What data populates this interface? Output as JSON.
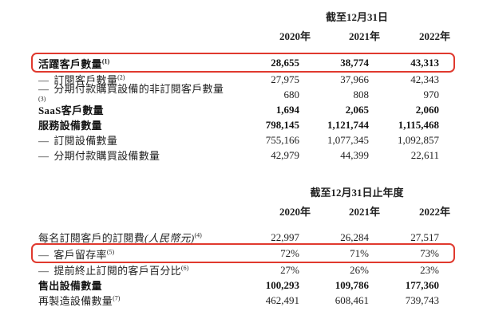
{
  "page": {
    "background": "#ffffff",
    "text_color": "#1f1f1f",
    "highlight_color": "#e0392e"
  },
  "tables": [
    {
      "period_header": "截至12月31日",
      "years": [
        "2020年",
        "2021年",
        "2022年"
      ],
      "rows": [
        {
          "dash": "",
          "label": "活躍客戶數量",
          "italic": "",
          "sup": "(1)",
          "values": [
            "28,655",
            "38,774",
            "43,313"
          ],
          "bold": true,
          "highlight": true
        },
        {
          "dash": "—",
          "label": "訂閱客戶數量",
          "italic": "",
          "sup": "(2)",
          "values": [
            "27,975",
            "37,966",
            "42,343"
          ],
          "bold": false,
          "highlight": false
        },
        {
          "dash": "—",
          "label": "分期付款購買設備的非訂閱客戶數量",
          "italic": "",
          "sup": "(3)",
          "values": [
            "680",
            "808",
            "970"
          ],
          "bold": false,
          "highlight": false
        },
        {
          "dash": "",
          "label": "SaaS客戶數量",
          "italic": "",
          "sup": "",
          "values": [
            "1,694",
            "2,065",
            "2,060"
          ],
          "bold": true,
          "highlight": false
        },
        {
          "dash": "",
          "label": "服務設備數量",
          "italic": "",
          "sup": "",
          "values": [
            "798,145",
            "1,121,744",
            "1,115,468"
          ],
          "bold": true,
          "highlight": false
        },
        {
          "dash": "—",
          "label": "訂閱設備數量",
          "italic": "",
          "sup": "",
          "values": [
            "755,166",
            "1,077,345",
            "1,092,857"
          ],
          "bold": false,
          "highlight": false
        },
        {
          "dash": "—",
          "label": "分期付款購買設備數量",
          "italic": "",
          "sup": "",
          "values": [
            "42,979",
            "44,399",
            "22,611"
          ],
          "bold": false,
          "highlight": false
        }
      ]
    },
    {
      "period_header": "截至12月31日止年度",
      "years": [
        "2020年",
        "2021年",
        "2022年"
      ],
      "rows": [
        {
          "dash": "",
          "label": "每名訂閱客戶的訂閱費",
          "italic": "(人民幣元)",
          "sup": "(4)",
          "values": [
            "22,997",
            "26,284",
            "27,517"
          ],
          "bold": false,
          "highlight": false
        },
        {
          "dash": "—",
          "label": "客戶留存率",
          "italic": "",
          "sup": "(5)",
          "values": [
            "72%",
            "71%",
            "73%"
          ],
          "bold": false,
          "highlight": true
        },
        {
          "dash": "—",
          "label": "提前終止訂閱的客戶百分比",
          "italic": "",
          "sup": "(6)",
          "values": [
            "27%",
            "26%",
            "23%"
          ],
          "bold": false,
          "highlight": false
        },
        {
          "dash": "",
          "label": "售出設備數量",
          "italic": "",
          "sup": "",
          "values": [
            "100,293",
            "109,786",
            "177,360"
          ],
          "bold": true,
          "highlight": false
        },
        {
          "dash": "",
          "label": "再製造設備數量",
          "italic": "",
          "sup": "(7)",
          "values": [
            "462,491",
            "608,461",
            "739,743"
          ],
          "bold": false,
          "highlight": false
        }
      ]
    }
  ]
}
